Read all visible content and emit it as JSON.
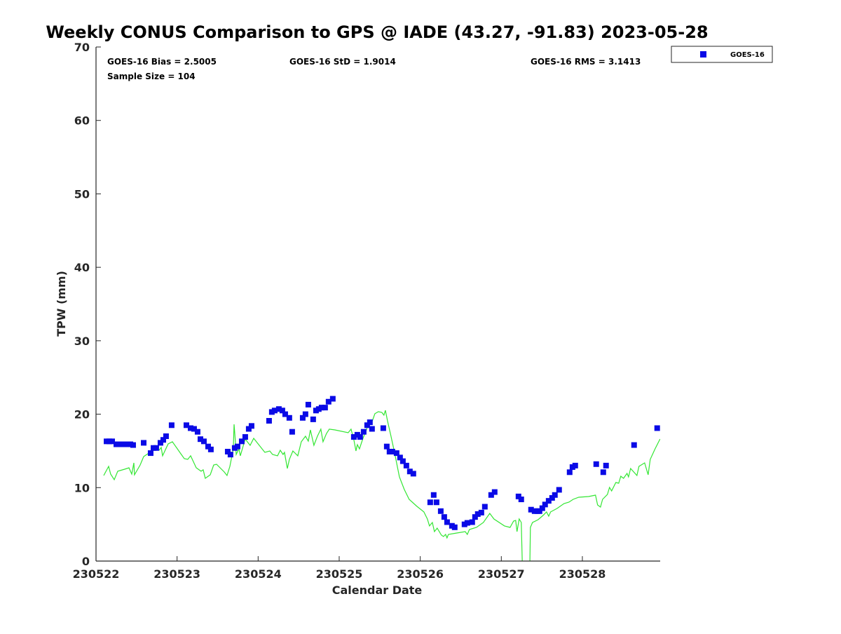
{
  "chart_data": {
    "type": "scatter",
    "title": "Weekly CONUS Comparison to GPS @ IADE (43.27, -91.83) 2023-05-28",
    "xlabel": "Calendar Date",
    "ylabel": "TPW (mm)",
    "x_units": "days since 230522",
    "xlim": [
      0,
      6.96
    ],
    "ylim": [
      0,
      70
    ],
    "xticks": [
      0,
      1,
      2,
      3,
      4,
      5,
      6
    ],
    "xtick_labels": [
      "230522",
      "230523",
      "230524",
      "230525",
      "230526",
      "230527",
      "230528"
    ],
    "yticks": [
      0,
      10,
      20,
      30,
      40,
      50,
      60,
      70
    ],
    "ytick_labels": [
      "0",
      "10",
      "20",
      "30",
      "40",
      "50",
      "60",
      "70"
    ],
    "grid": false,
    "legend": {
      "placement": "top-right outside",
      "entries": [
        "GOES-16"
      ]
    },
    "annotations": {
      "bias": "GOES-16 Bias = 2.5005",
      "std": "GOES-16 StD = 1.9014",
      "rms": "GOES-16 RMS = 3.1413",
      "sample": "Sample Size = 104"
    },
    "colors": {
      "goes": "#0a0ae6",
      "gps": "#33e633",
      "axis": "#262626"
    },
    "series": [
      {
        "name": "GOES-16",
        "kind": "scatter",
        "x": [
          0.13,
          0.164,
          0.199,
          0.251,
          0.285,
          0.32,
          0.354,
          0.389,
          0.424,
          0.458,
          0.588,
          0.674,
          0.709,
          0.743,
          0.795,
          0.83,
          0.864,
          0.933,
          1.115,
          1.167,
          1.21,
          1.253,
          1.288,
          1.331,
          1.383,
          1.417,
          1.625,
          1.659,
          1.711,
          1.746,
          1.798,
          1.841,
          1.884,
          1.919,
          2.135,
          2.169,
          2.204,
          2.256,
          2.299,
          2.334,
          2.385,
          2.42,
          2.55,
          2.584,
          2.619,
          2.679,
          2.714,
          2.748,
          2.783,
          2.826,
          2.869,
          2.921,
          3.181,
          3.224,
          3.258,
          3.302,
          3.345,
          3.379,
          3.405,
          3.544,
          3.587,
          3.621,
          3.656,
          3.708,
          3.751,
          3.786,
          3.829,
          3.872,
          3.915,
          4.123,
          4.166,
          4.201,
          4.253,
          4.296,
          4.331,
          4.391,
          4.425,
          4.546,
          4.581,
          4.641,
          4.676,
          4.71,
          4.754,
          4.797,
          4.875,
          4.918,
          5.212,
          5.246,
          5.367,
          5.411,
          5.445,
          5.471,
          5.506,
          5.54,
          5.584,
          5.627,
          5.661,
          5.713,
          5.843,
          5.878,
          5.912,
          6.171,
          6.258,
          6.292,
          6.638,
          6.923
        ],
        "y": [
          16.3,
          16.3,
          16.3,
          15.9,
          15.9,
          15.9,
          15.9,
          15.9,
          15.9,
          15.8,
          16.1,
          14.7,
          15.4,
          15.4,
          16.1,
          16.5,
          17.0,
          18.5,
          18.5,
          18.1,
          18.0,
          17.6,
          16.6,
          16.3,
          15.6,
          15.2,
          14.9,
          14.5,
          15.4,
          15.6,
          16.3,
          16.9,
          18.0,
          18.4,
          19.1,
          20.3,
          20.5,
          20.7,
          20.5,
          20.0,
          19.5,
          17.6,
          19.5,
          20.0,
          21.3,
          19.3,
          20.5,
          20.7,
          20.9,
          20.9,
          21.7,
          22.1,
          16.9,
          17.2,
          16.9,
          17.6,
          18.5,
          18.9,
          18.0,
          18.1,
          15.6,
          14.9,
          14.9,
          14.7,
          14.1,
          13.6,
          13.0,
          12.2,
          11.9,
          8.0,
          9.0,
          8.0,
          6.8,
          6.0,
          5.3,
          4.8,
          4.6,
          5.0,
          5.2,
          5.3,
          6.0,
          6.4,
          6.6,
          7.4,
          9.0,
          9.4,
          8.8,
          8.4,
          7.0,
          6.8,
          6.8,
          6.8,
          7.2,
          7.7,
          8.2,
          8.6,
          9.0,
          9.7,
          12.1,
          12.8,
          13.0,
          13.2,
          12.1,
          13.0,
          15.8,
          18.1
        ]
      },
      {
        "name": "GPS",
        "kind": "line",
        "x": [
          0.095,
          0.156,
          0.181,
          0.225,
          0.268,
          0.354,
          0.406,
          0.441,
          0.467,
          0.475,
          0.545,
          0.588,
          0.665,
          0.726,
          0.778,
          0.804,
          0.821,
          0.89,
          0.942,
          1.046,
          1.089,
          1.132,
          1.167,
          1.236,
          1.296,
          1.322,
          1.348,
          1.409,
          1.452,
          1.487,
          1.582,
          1.616,
          1.651,
          1.694,
          1.703,
          1.72,
          1.729,
          1.763,
          1.78,
          1.841,
          1.901,
          1.945,
          2.083,
          2.143,
          2.178,
          2.239,
          2.273,
          2.308,
          2.325,
          2.36,
          2.385,
          2.429,
          2.489,
          2.532,
          2.584,
          2.619,
          2.645,
          2.688,
          2.731,
          2.774,
          2.8,
          2.844,
          2.878,
          2.947,
          3.111,
          3.146,
          3.181,
          3.207,
          3.224,
          3.25,
          3.293,
          3.336,
          3.354,
          3.397,
          3.44,
          3.483,
          3.526,
          3.552,
          3.57,
          3.596,
          3.639,
          3.682,
          3.743,
          3.803,
          3.863,
          3.959,
          4.045,
          4.088,
          4.114,
          4.149,
          4.175,
          4.209,
          4.261,
          4.287,
          4.313,
          4.33,
          4.347,
          4.451,
          4.555,
          4.581,
          4.607,
          4.693,
          4.779,
          4.857,
          4.909,
          5.039,
          5.108,
          5.151,
          5.177,
          5.194,
          5.22,
          5.246,
          5.263,
          5.35,
          5.359,
          5.385,
          5.454,
          5.514,
          5.558,
          5.584,
          5.609,
          5.687,
          5.774,
          5.834,
          5.886,
          5.955,
          6.076,
          6.162,
          6.188,
          6.223,
          6.249,
          6.309,
          6.335,
          6.361,
          6.413,
          6.448,
          6.474,
          6.508,
          6.551,
          6.569,
          6.595,
          6.673,
          6.698,
          6.768,
          6.811,
          6.837,
          6.897,
          6.958
        ],
        "y": [
          11.65,
          12.89,
          11.84,
          11.08,
          12.23,
          12.51,
          12.7,
          11.84,
          13.37,
          11.75,
          13.08,
          14.23,
          14.8,
          15.57,
          15.09,
          15.47,
          14.33,
          15.95,
          16.24,
          14.61,
          13.94,
          13.85,
          14.33,
          12.7,
          12.23,
          12.42,
          11.27,
          11.75,
          13.08,
          13.18,
          12.13,
          11.65,
          12.89,
          15.28,
          18.62,
          16.24,
          14.52,
          15.28,
          14.33,
          16.62,
          15.76,
          16.71,
          14.8,
          14.99,
          14.52,
          14.33,
          15.09,
          14.52,
          14.8,
          12.61,
          13.85,
          14.99,
          14.33,
          16.24,
          17.0,
          16.33,
          17.86,
          15.76,
          17.0,
          17.96,
          16.24,
          17.38,
          17.96,
          17.86,
          17.48,
          17.96,
          16.52,
          14.99,
          15.85,
          15.28,
          16.71,
          17.86,
          18.53,
          18.72,
          20.06,
          20.34,
          20.25,
          19.87,
          20.53,
          19.1,
          17.0,
          14.8,
          11.46,
          9.74,
          8.4,
          7.45,
          6.69,
          5.73,
          4.78,
          5.25,
          4.01,
          4.49,
          3.53,
          3.34,
          3.63,
          3.15,
          3.63,
          3.82,
          4.01,
          3.63,
          4.3,
          4.58,
          5.25,
          6.49,
          5.73,
          4.78,
          4.58,
          5.44,
          5.54,
          4.01,
          5.73,
          5.25,
          -2,
          -2,
          4.58,
          5.25,
          5.63,
          6.21,
          6.69,
          6.11,
          6.69,
          7.16,
          7.83,
          8.02,
          8.4,
          8.69,
          8.79,
          8.98,
          7.64,
          7.35,
          8.4,
          9.07,
          10.03,
          9.55,
          10.7,
          10.6,
          11.56,
          11.27,
          11.94,
          11.46,
          12.61,
          11.65,
          12.89,
          13.37,
          11.75,
          13.85,
          15.28,
          16.62
        ]
      }
    ]
  }
}
